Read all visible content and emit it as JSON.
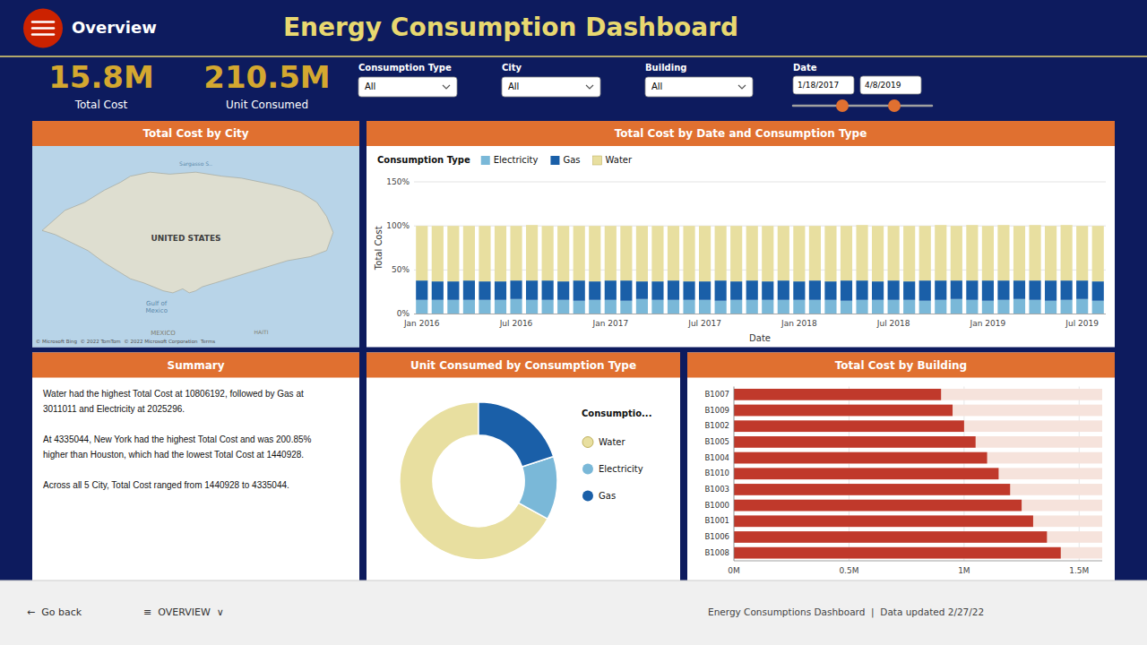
{
  "title": "Energy Consumption Dashboard",
  "annotations": [
    "Overview",
    "15.8M",
    "Total Cost",
    "210.5M",
    "Unit Consumed",
    "Consumption Type",
    "All",
    "City",
    "All",
    "Building",
    "All",
    "Date",
    "1/18/2017",
    "4/8/2019",
    "←  Go back",
    "≡  OVERVIEW  ∨",
    "Energy Consumptions Dashboard  |  Data updated 2/27/22"
  ],
  "chart_data": [
    {
      "type": "map",
      "title": "Total Cost by City",
      "annotations": [
        "UNITED STATES",
        "Gulf of\nMexico",
        "Sargasso S..",
        "MEXICO",
        "HAITI",
        "© Microsoft Bing  © 2022 TomTom  © 2022 Microsoft Corporation  Terms"
      ]
    },
    {
      "type": "bar",
      "stacked": true,
      "title": "Total Cost by Date and Consumption Type",
      "x_label": "Date",
      "y_label": "Total Cost",
      "categories": [
        "Jan 2016",
        null,
        null,
        null,
        null,
        null,
        "Jul 2016",
        null,
        null,
        null,
        null,
        null,
        "Jan 2017",
        null,
        null,
        null,
        null,
        null,
        "Jul 2017",
        null,
        null,
        null,
        null,
        null,
        "Jan 2018",
        null,
        null,
        null,
        null,
        null,
        "Jul 2018",
        null,
        null,
        null,
        null,
        null,
        "Jan 2019",
        null,
        null,
        null,
        null,
        null,
        "Jul 2019",
        null
      ],
      "series": [
        {
          "name": "Electricity",
          "color": "#7ab8d8",
          "values": [
            0.16,
            0.16,
            0.16,
            0.16,
            0.16,
            0.16,
            0.17,
            0.16,
            0.16,
            0.16,
            0.15,
            0.16,
            0.16,
            0.15,
            0.17,
            0.16,
            0.16,
            0.16,
            0.16,
            0.15,
            0.16,
            0.16,
            0.16,
            0.16,
            0.16,
            0.16,
            0.16,
            0.15,
            0.16,
            0.16,
            0.16,
            0.16,
            0.15,
            0.16,
            0.17,
            0.16,
            0.15,
            0.16,
            0.17,
            0.16,
            0.15,
            0.16,
            0.17,
            0.15
          ]
        },
        {
          "name": "Gas",
          "color": "#1a5fa8",
          "values": [
            0.22,
            0.21,
            0.21,
            0.22,
            0.21,
            0.21,
            0.21,
            0.22,
            0.22,
            0.21,
            0.23,
            0.21,
            0.22,
            0.23,
            0.2,
            0.21,
            0.22,
            0.21,
            0.21,
            0.23,
            0.21,
            0.22,
            0.21,
            0.22,
            0.21,
            0.22,
            0.21,
            0.23,
            0.22,
            0.21,
            0.22,
            0.21,
            0.23,
            0.22,
            0.21,
            0.22,
            0.23,
            0.22,
            0.21,
            0.22,
            0.23,
            0.22,
            0.21,
            0.22
          ]
        },
        {
          "name": "Water",
          "color": "#e8dfa0",
          "values": [
            0.62,
            0.63,
            0.63,
            0.62,
            0.63,
            0.63,
            0.62,
            0.63,
            0.62,
            0.63,
            0.62,
            0.63,
            0.62,
            0.62,
            0.63,
            0.63,
            0.62,
            0.63,
            0.63,
            0.62,
            0.63,
            0.62,
            0.63,
            0.62,
            0.63,
            0.62,
            0.63,
            0.62,
            0.63,
            0.63,
            0.62,
            0.63,
            0.62,
            0.63,
            0.62,
            0.63,
            0.62,
            0.63,
            0.62,
            0.63,
            0.62,
            0.63,
            0.62,
            0.63
          ]
        }
      ],
      "ylim": [
        0,
        1.5
      ],
      "yticks": [
        {
          "value": 0,
          "label": "0%"
        },
        {
          "value": 0.5,
          "label": "50%"
        },
        {
          "value": 1.0,
          "label": "100%"
        },
        {
          "value": 1.5,
          "label": "150%"
        }
      ],
      "grid": true,
      "legend": "top left",
      "annotations": [
        "Consumption Type"
      ]
    },
    {
      "type": "text",
      "title": "Summary",
      "annotations": [
        "Water had the highest Total Cost at 10806192, followed by Gas at\n3011011 and Electricity at 2025296.\n\nAt 4335044, New York had the highest Total Cost and was 200.85%\nhigher than Houston, which had the lowest Total Cost at 1440928.\n\nAcross all 5 City, Total Cost ranged from 1440928 to 4335044."
      ]
    },
    {
      "type": "donut",
      "title": "Unit Consumed by Consumption Type",
      "categories": [
        "Water",
        "Electricity",
        "Gas"
      ],
      "values": [
        0.67,
        0.13,
        0.2
      ],
      "colors": [
        "#e8dfa0",
        "#7ab8d8",
        "#1a5fa8"
      ],
      "legend": "right",
      "annotations": [
        "Consumptio..."
      ]
    },
    {
      "type": "bar",
      "orientation": "horizontal",
      "title": "Total Cost by Building",
      "categories": [
        "B1008",
        "B1006",
        "B1001",
        "B1000",
        "B1003",
        "B1010",
        "B1004",
        "B1005",
        "B1002",
        "B1009",
        "B1007"
      ],
      "values": [
        1.42,
        1.36,
        1.3,
        1.25,
        1.2,
        1.15,
        1.1,
        1.05,
        1.0,
        0.95,
        0.9
      ],
      "color": "#c0392b",
      "xlim": [
        0,
        1.6
      ],
      "xticks": [
        {
          "value": 0,
          "label": "0M"
        },
        {
          "value": 0.5,
          "label": "0.5M"
        },
        {
          "value": 1.0,
          "label": "1M"
        },
        {
          "value": 1.5,
          "label": "1.5M"
        }
      ],
      "grid": true
    }
  ]
}
